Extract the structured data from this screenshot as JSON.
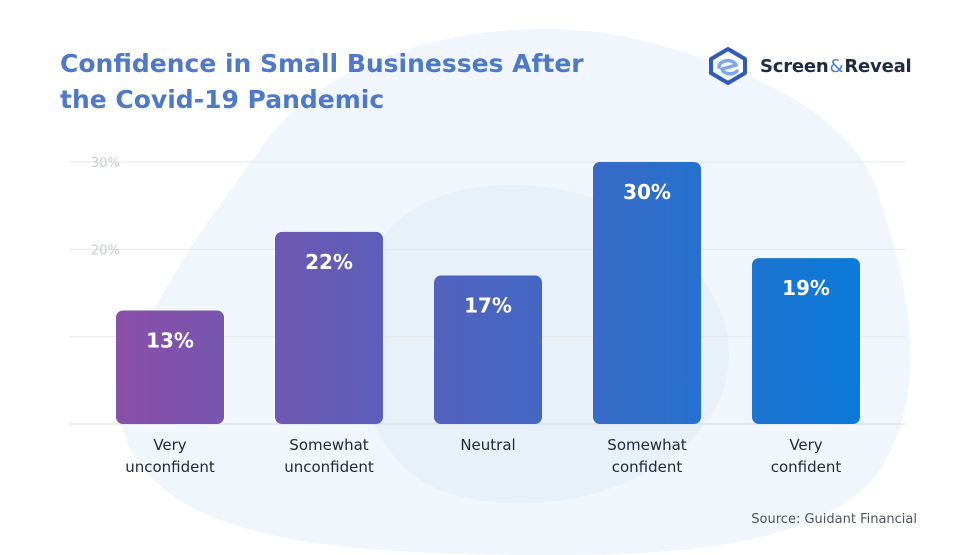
{
  "header": {
    "title": "Confidence in Small Businesses After the Covid-19 Pandemic"
  },
  "brand": {
    "name_left": "Screen",
    "name_amp": "&",
    "name_right": "Reveal",
    "logo_icon": "screen-reveal-logo-icon"
  },
  "colors": {
    "title": "#4d79c8",
    "bar_gradient_start": "#8a4fa8",
    "bar_gradient_end": "#0b7ad8",
    "grid": "#e5e7eb",
    "background_blob": "#eef4fb"
  },
  "chart_data": {
    "type": "bar",
    "categories": [
      [
        "Very",
        "unconfident"
      ],
      [
        "Somewhat",
        "unconfident"
      ],
      [
        "Neutral"
      ],
      [
        "Somewhat",
        "confident"
      ],
      [
        "Very",
        "confident"
      ]
    ],
    "values": [
      13,
      22,
      17,
      30,
      19
    ],
    "data_labels": [
      "13%",
      "22%",
      "17%",
      "30%",
      "19%"
    ],
    "y_ticks": [
      {
        "value": 30,
        "label": "30%"
      },
      {
        "value": 20,
        "label": "20%"
      },
      {
        "value": 10,
        "label": ""
      },
      {
        "value": 0,
        "label": ""
      }
    ],
    "ylim": [
      0,
      30
    ],
    "grid": true,
    "legend": "none"
  },
  "footer": {
    "source": "Source: Guidant Financial"
  }
}
